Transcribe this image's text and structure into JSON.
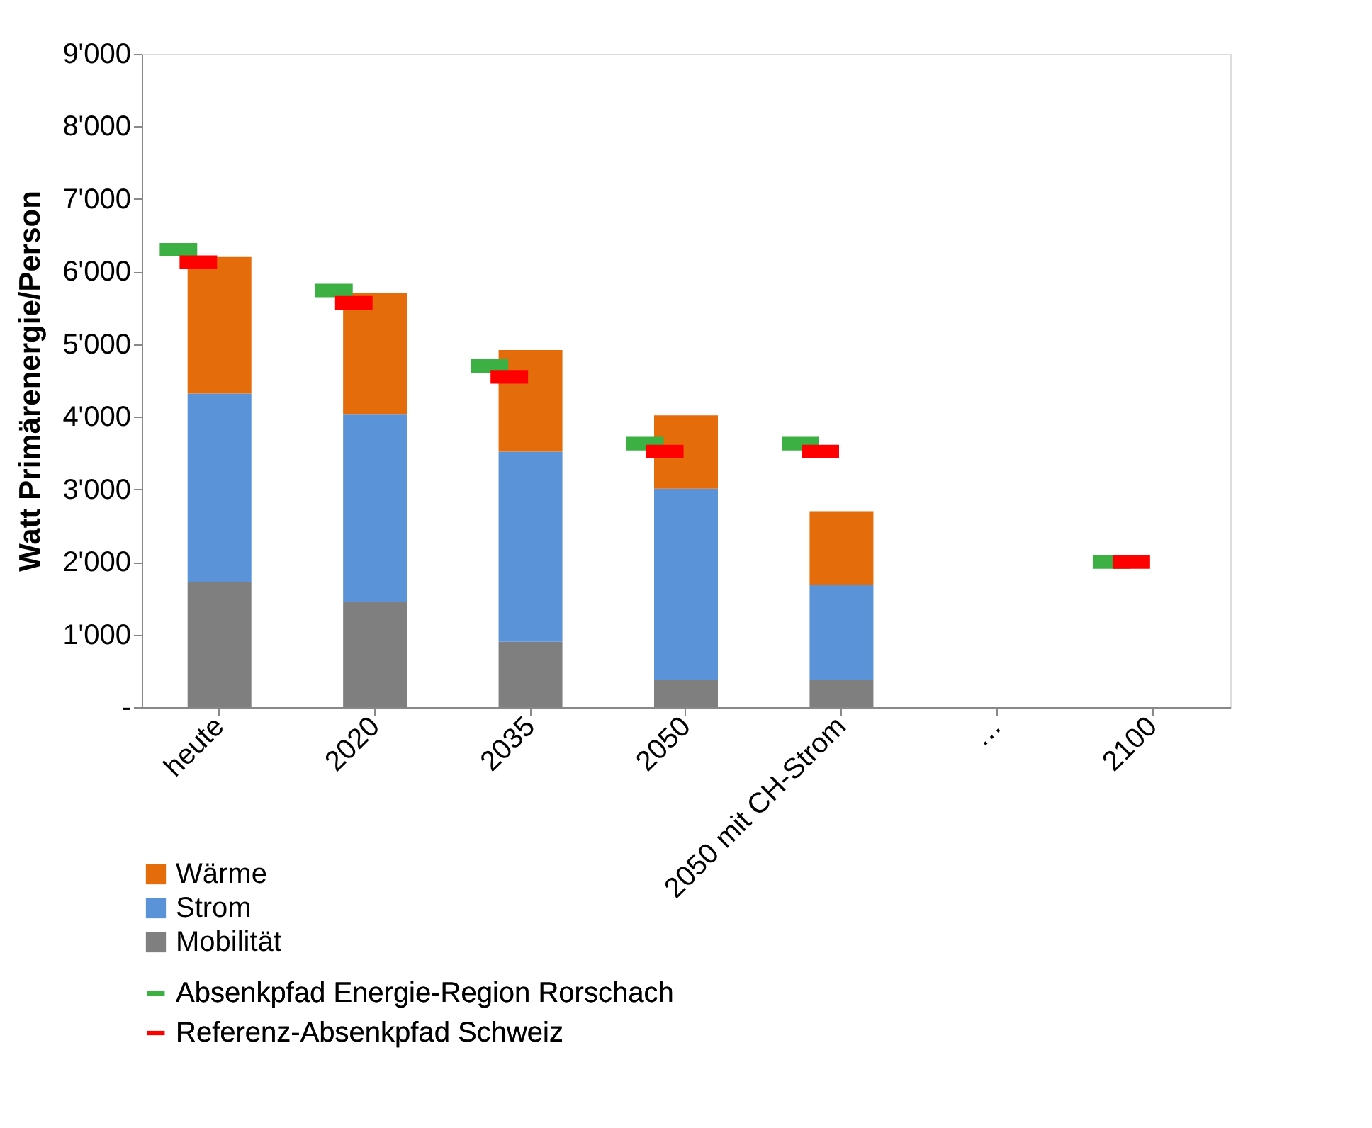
{
  "chart_data": {
    "type": "bar",
    "stacked": true,
    "ylabel": "Watt Primärenergie/Person",
    "categories": [
      "heute",
      "2020",
      "2035",
      "2050",
      "2050 mit CH-Strom",
      "…",
      "2100"
    ],
    "series": [
      {
        "name": "Mobilität",
        "color": "#7f7f7f",
        "values": [
          1720,
          1450,
          900,
          370,
          370,
          null,
          null
        ]
      },
      {
        "name": "Strom",
        "color": "#5b93d8",
        "values": [
          2600,
          2580,
          2620,
          2640,
          1310,
          null,
          null
        ]
      },
      {
        "name": "Wärme",
        "color": "#e46c0a",
        "values": [
          1880,
          1670,
          1400,
          1010,
          1020,
          null,
          null
        ]
      },
      {
        "name": "Absenkpfad Energie-Region Rorschach",
        "type": "scatter",
        "color": "#3cb043",
        "values": [
          6300,
          5740,
          4700,
          3630,
          3630,
          null,
          2000
        ]
      },
      {
        "name": "Referenz-Absenkpfad Schweiz",
        "type": "scatter",
        "color": "#ff0000",
        "values": [
          6130,
          5570,
          4550,
          3520,
          3520,
          null,
          2000
        ]
      }
    ],
    "ylim": [
      0,
      9000
    ],
    "yticks": [
      {
        "value": 0,
        "label": "-"
      },
      {
        "value": 1000,
        "label": "1'000"
      },
      {
        "value": 2000,
        "label": "2'000"
      },
      {
        "value": 3000,
        "label": "3'000"
      },
      {
        "value": 4000,
        "label": "4'000"
      },
      {
        "value": 5000,
        "label": "5'000"
      },
      {
        "value": 6000,
        "label": "6'000"
      },
      {
        "value": 7000,
        "label": "7'000"
      },
      {
        "value": 8000,
        "label": "8'000"
      },
      {
        "value": 9000,
        "label": "9'000"
      }
    ],
    "grid": false,
    "legend": "bottom left"
  }
}
